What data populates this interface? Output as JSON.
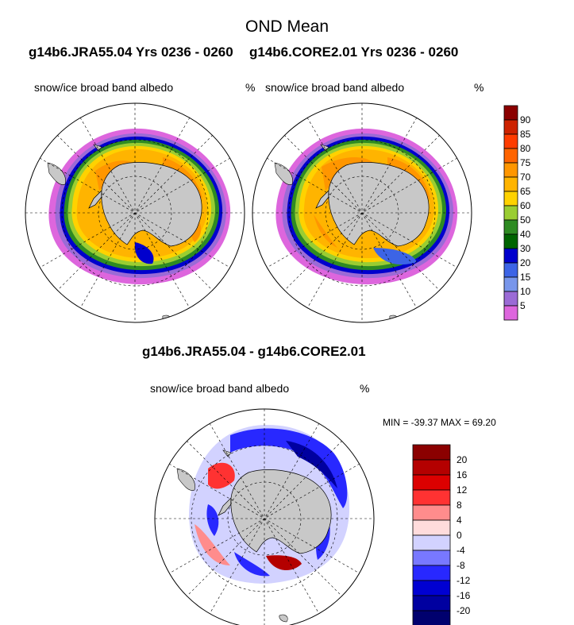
{
  "page": {
    "title": "OND Mean",
    "left_header": "g14b6.JRA55.04  Yrs 0236 - 0260",
    "right_header": "g14b6.CORE2.01  Yrs 0236 - 0260",
    "diff_title": "g14b6.JRA55.04 - g14b6.CORE2.01"
  },
  "panels": {
    "left": {
      "variable": "snow/ice broad band albedo",
      "units": "%"
    },
    "right": {
      "variable": "snow/ice broad band albedo",
      "units": "%"
    },
    "diff": {
      "variable": "snow/ice broad band albedo",
      "units": "%",
      "stats": "MIN = -39.37 MAX =  69.20"
    }
  },
  "colorbar_top": {
    "labels": [
      "90",
      "85",
      "80",
      "75",
      "70",
      "65",
      "60",
      "50",
      "40",
      "30",
      "20",
      "15",
      "10",
      "5"
    ],
    "colors": [
      "#8b0000",
      "#cd2200",
      "#ff3c00",
      "#ff6400",
      "#ff9600",
      "#ffb400",
      "#ffd200",
      "#9acd32",
      "#2e8b22",
      "#006400",
      "#0000cd",
      "#3c64e6",
      "#7896eb",
      "#9b6bd6",
      "#dd66dd"
    ]
  },
  "colorbar_diff": {
    "labels": [
      "20",
      "16",
      "12",
      "8",
      "4",
      "0",
      "-4",
      "-8",
      "-12",
      "-16",
      "-20"
    ],
    "colors": [
      "#8b0000",
      "#b40000",
      "#dc0000",
      "#ff3232",
      "#ff8c8c",
      "#ffdcdc",
      "#d2d2ff",
      "#7878ff",
      "#2828ff",
      "#0000d2",
      "#0000a0",
      "#00006e"
    ]
  }
}
